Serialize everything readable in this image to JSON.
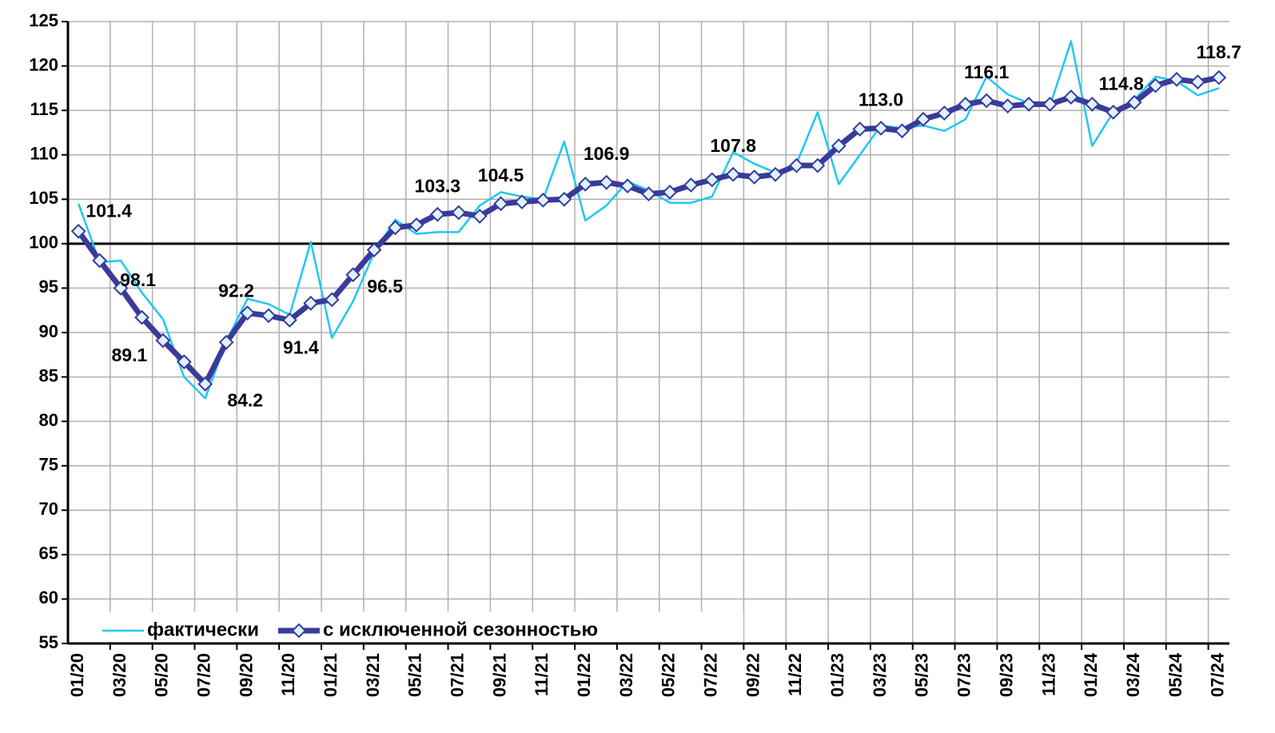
{
  "chart_data": {
    "type": "line",
    "categories": [
      "01/20",
      null,
      "03/20",
      null,
      "05/20",
      null,
      "07/20",
      null,
      "09/20",
      null,
      "11/20",
      null,
      "01/21",
      null,
      "03/21",
      null,
      "05/21",
      null,
      "07/21",
      null,
      "09/21",
      null,
      "11/21",
      null,
      "01/22",
      null,
      "03/22",
      null,
      "05/22",
      null,
      "07/22",
      null,
      "09/22",
      null,
      "11/22",
      null,
      "01/23",
      null,
      "03/23",
      null,
      "05/23",
      null,
      "07/23",
      null,
      "09/23",
      null,
      "11/23",
      null,
      "01/24",
      null,
      "03/24",
      null,
      "05/24",
      null,
      "07/24"
    ],
    "series": [
      {
        "name": "фактически",
        "color": "#1ec8f0",
        "values": [
          104.5,
          97.9,
          98.1,
          94.5,
          91.5,
          85.0,
          82.6,
          89.0,
          93.8,
          93.2,
          92.0,
          100.2,
          89.4,
          93.5,
          99.0,
          102.7,
          101.1,
          101.3,
          101.3,
          104.3,
          105.8,
          105.3,
          105.0,
          111.5,
          102.6,
          104.3,
          107.0,
          106.0,
          104.6,
          104.6,
          105.3,
          110.3,
          109.0,
          108.0,
          109.0,
          114.8,
          106.7,
          110.0,
          113.3,
          113.0,
          113.3,
          112.7,
          114.0,
          118.8,
          116.8,
          115.8,
          115.5,
          122.8,
          111.0,
          114.8,
          116.2,
          118.8,
          118.3,
          116.7,
          117.5
        ]
      },
      {
        "name": "с исключенной сезонностью",
        "color": "#3a3a9a",
        "values": [
          101.4,
          98.1,
          95.0,
          91.7,
          89.1,
          86.7,
          84.2,
          88.9,
          92.2,
          91.9,
          91.4,
          93.3,
          93.7,
          96.5,
          99.3,
          101.8,
          102.1,
          103.3,
          103.5,
          103.1,
          104.5,
          104.7,
          104.9,
          105.0,
          106.7,
          106.9,
          106.5,
          105.6,
          105.8,
          106.6,
          107.2,
          107.8,
          107.5,
          107.8,
          108.8,
          108.8,
          111.0,
          112.9,
          113.0,
          112.7,
          114.0,
          114.7,
          115.7,
          116.1,
          115.5,
          115.7,
          115.7,
          116.5,
          115.7,
          114.8,
          115.9,
          117.8,
          118.5,
          118.2,
          118.7
        ],
        "value_labels": [
          "101.4",
          "98.1",
          null,
          null,
          "89.1",
          null,
          "84.2",
          null,
          "92.2",
          null,
          "91.4",
          null,
          null,
          "96.5",
          null,
          null,
          null,
          "103.3",
          null,
          null,
          "104.5",
          null,
          null,
          null,
          null,
          "106.9",
          null,
          null,
          null,
          null,
          null,
          "107.8",
          null,
          null,
          null,
          null,
          null,
          null,
          "113.0",
          null,
          null,
          null,
          null,
          "116.1",
          null,
          null,
          null,
          null,
          null,
          "114.8",
          null,
          null,
          null,
          null,
          "118.7"
        ]
      }
    ],
    "ylim": [
      55,
      125
    ],
    "yticks": [
      55,
      60,
      65,
      70,
      75,
      80,
      85,
      90,
      95,
      100,
      105,
      110,
      115,
      120,
      125
    ],
    "grid": true,
    "baseline": 100,
    "legend": "lower left"
  }
}
